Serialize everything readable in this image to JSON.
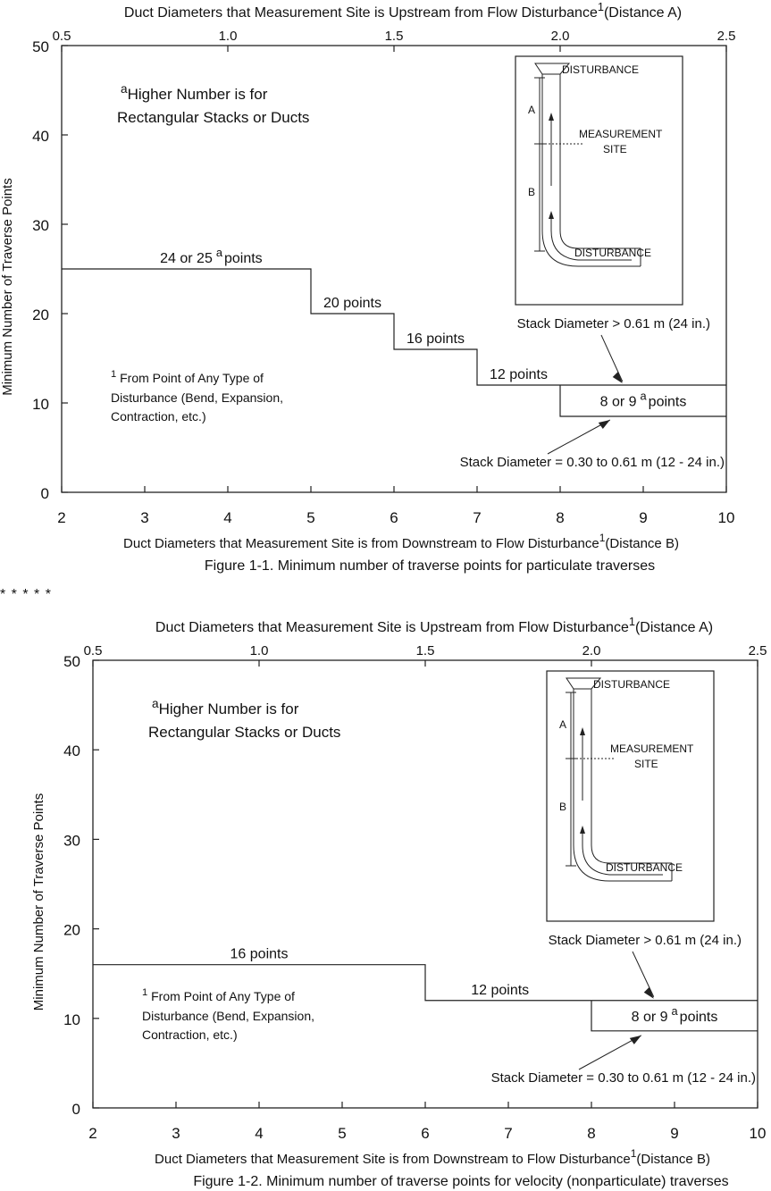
{
  "separator": "* * * * *",
  "figures": [
    {
      "caption": "Figure 1-1. Minimum number of traverse points for particulate traverses",
      "top_axis_label": "Duct Diameters that Measurement Site is Upstream from Flow Disturbance",
      "top_axis_sup": "1",
      "top_axis_suffix": "(Distance A)",
      "bottom_axis_label": "Duct Diameters that Measurement Site is from Downstream to Flow Disturbance",
      "bottom_axis_sup": "1",
      "bottom_axis_suffix": "(Distance B)",
      "y_axis_label": "Minimum Number of Traverse Points",
      "footnote_a_sup": "a",
      "footnote_a_line1": "Higher Number is for",
      "footnote_a_line2": "Rectangular Stacks or Ducts",
      "footnote_1_sup": "1",
      "footnote_1_line1": "From Point of Any Type of",
      "footnote_1_line2": "Disturbance (Bend, Expansion,",
      "footnote_1_line3": "Contraction, etc.)",
      "large_stack_label": "Stack Diameter > 0.61 m (24 in.)",
      "small_stack_label": "Stack Diameter = 0.30 to 0.61 m (12 - 24 in.)",
      "small_stack_points_prefix": "8 or 9",
      "small_stack_points_sup": "a",
      "small_stack_points_suffix": "points",
      "inset": {
        "top_label": "DISTURBANCE",
        "mid_label_1": "MEASUREMENT",
        "mid_label_2": "SITE",
        "bottom_label": "DISTURBANCE",
        "a_label": "A",
        "b_label": "B"
      },
      "chart_data": {
        "type": "line",
        "x_bottom_ticks": [
          "2",
          "3",
          "4",
          "5",
          "6",
          "7",
          "8",
          "9",
          "10"
        ],
        "x_top_ticks": [
          "0.5",
          "1.0",
          "1.5",
          "2.0",
          "2.5"
        ],
        "y_ticks": [
          "0",
          "10",
          "20",
          "30",
          "40",
          "50"
        ],
        "xlim": [
          2,
          10
        ],
        "x_top_lim": [
          0.5,
          2.5
        ],
        "ylim": [
          0,
          50
        ],
        "series": [
          {
            "name": "Stack Diameter > 0.61 m (24 in.)",
            "x": [
              2,
              5,
              5,
              6,
              6,
              7,
              7,
              10
            ],
            "y": [
              25,
              25,
              20,
              20,
              16,
              16,
              12,
              12
            ]
          },
          {
            "name": "Stack Diameter = 0.30 to 0.61 m (12 - 24 in.)",
            "x": [
              8,
              8,
              10
            ],
            "y": [
              12,
              8.5,
              8.5
            ]
          }
        ],
        "step_labels": [
          {
            "prefix": "24 or 25",
            "sup": "a",
            "suffix": "points",
            "x": 3.8,
            "y": 25
          },
          {
            "prefix": "20 points",
            "sup": "",
            "suffix": "",
            "x": 5.5,
            "y": 20
          },
          {
            "prefix": "16 points",
            "sup": "",
            "suffix": "",
            "x": 6.5,
            "y": 16
          },
          {
            "prefix": "12 points",
            "sup": "",
            "suffix": "",
            "x": 7.5,
            "y": 12
          }
        ]
      }
    },
    {
      "caption": "Figure 1-2. Minimum number of traverse points for velocity (nonparticulate) traverses",
      "top_axis_label": "Duct Diameters that Measurement Site is Upstream from Flow Disturbance",
      "top_axis_sup": "1",
      "top_axis_suffix": "(Distance A)",
      "bottom_axis_label": "Duct Diameters that Measurement Site is from Downstream to Flow Disturbance",
      "bottom_axis_sup": "1",
      "bottom_axis_suffix": "(Distance B)",
      "y_axis_label": "Minimum Number of Traverse Points",
      "footnote_a_sup": "a",
      "footnote_a_line1": "Higher Number is for",
      "footnote_a_line2": "Rectangular Stacks or Ducts",
      "footnote_1_sup": "1",
      "footnote_1_line1": "From Point of Any Type of",
      "footnote_1_line2": "Disturbance (Bend, Expansion,",
      "footnote_1_line3": "Contraction, etc.)",
      "large_stack_label": "Stack Diameter > 0.61 m (24 in.)",
      "small_stack_label": "Stack Diameter = 0.30 to 0.61 m (12 - 24 in.)",
      "small_stack_points_prefix": "8 or 9",
      "small_stack_points_sup": "a",
      "small_stack_points_suffix": "points",
      "inset": {
        "top_label": "DISTURBANCE",
        "mid_label_1": "MEASUREMENT",
        "mid_label_2": "SITE",
        "bottom_label": "DISTURBANCE",
        "a_label": "A",
        "b_label": "B"
      },
      "chart_data": {
        "type": "line",
        "x_bottom_ticks": [
          "2",
          "3",
          "4",
          "5",
          "6",
          "7",
          "8",
          "9",
          "10"
        ],
        "x_top_ticks": [
          "0.5",
          "1.0",
          "1.5",
          "2.0",
          "2.5"
        ],
        "y_ticks": [
          "0",
          "10",
          "20",
          "30",
          "40",
          "50"
        ],
        "xlim": [
          2,
          10
        ],
        "x_top_lim": [
          0.5,
          2.5
        ],
        "ylim": [
          0,
          50
        ],
        "series": [
          {
            "name": "Stack Diameter > 0.61 m (24 in.)",
            "x": [
              2,
              6,
              6,
              10
            ],
            "y": [
              16,
              16,
              12,
              12
            ]
          },
          {
            "name": "Stack Diameter = 0.30 to 0.61 m (12 - 24 in.)",
            "x": [
              8,
              8,
              10
            ],
            "y": [
              12,
              8.6,
              8.6
            ]
          }
        ],
        "step_labels": [
          {
            "prefix": "16 points",
            "sup": "",
            "suffix": "",
            "x": 4.0,
            "y": 16
          },
          {
            "prefix": "12 points",
            "sup": "",
            "suffix": "",
            "x": 6.9,
            "y": 12
          }
        ]
      }
    }
  ]
}
